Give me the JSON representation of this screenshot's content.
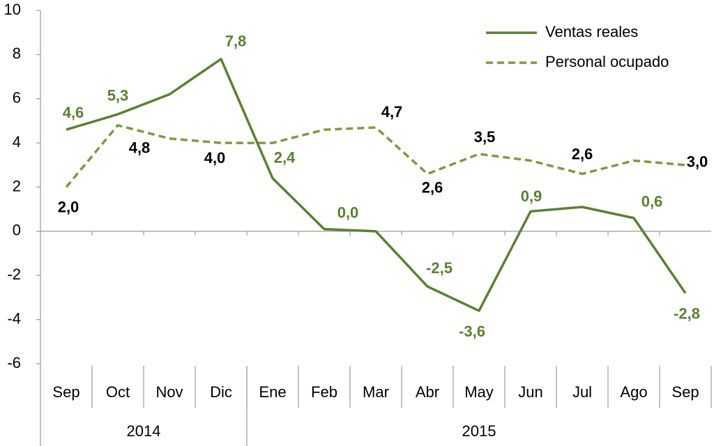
{
  "chart_data": {
    "type": "line",
    "categories": [
      "Sep",
      "Oct",
      "Nov",
      "Dic",
      "Ene",
      "Feb",
      "Mar",
      "Abr",
      "May",
      "Jun",
      "Jul",
      "Ago",
      "Sep"
    ],
    "groups": [
      {
        "label": "2014",
        "span": 4
      },
      {
        "label": "2015",
        "span": 9
      }
    ],
    "series": [
      {
        "name": "Ventas reales",
        "color": "#5b7f34",
        "dash": false,
        "values": [
          4.6,
          5.3,
          6.2,
          7.8,
          2.4,
          0.1,
          0.0,
          -2.5,
          -3.6,
          0.9,
          1.1,
          0.6,
          -2.8
        ],
        "value_labels": [
          "4,6",
          "5,3",
          null,
          "7,8",
          "2,4",
          null,
          "0,0",
          "-2,5",
          "-3,6",
          "0,9",
          null,
          "0,6",
          "-2,8"
        ],
        "label_color": "#5b7f34"
      },
      {
        "name": "Personal ocupado",
        "color": "#7a9a45",
        "dash": true,
        "values": [
          2.0,
          4.8,
          4.2,
          4.0,
          4.0,
          4.6,
          4.7,
          2.6,
          3.5,
          3.2,
          2.6,
          3.2,
          3.0
        ],
        "value_labels": [
          "2,0",
          "4,8",
          null,
          "4,0",
          null,
          null,
          "4,7",
          "2,6",
          "3,5",
          null,
          "2,6",
          null,
          "3,0"
        ],
        "label_color": "#000000"
      }
    ],
    "ylim": [
      -6,
      10
    ],
    "yticks": [
      -6,
      -4,
      -2,
      0,
      2,
      4,
      6,
      8,
      10
    ],
    "grid": false,
    "legend": "top-right"
  }
}
